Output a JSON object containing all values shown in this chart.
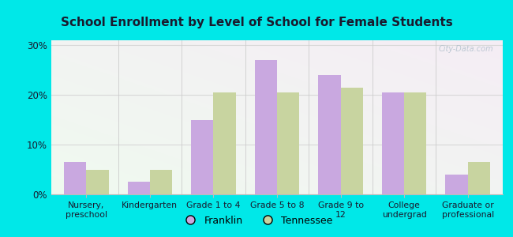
{
  "title": "School Enrollment by Level of School for Female Students",
  "categories": [
    "Nursery,\npreschool",
    "Kindergarten",
    "Grade 1 to 4",
    "Grade 5 to 8",
    "Grade 9 to\n12",
    "College\nundergrad",
    "Graduate or\nprofessional"
  ],
  "franklin_values": [
    6.5,
    2.5,
    15.0,
    27.0,
    24.0,
    20.5,
    4.0
  ],
  "tennessee_values": [
    5.0,
    5.0,
    20.5,
    20.5,
    21.5,
    20.5,
    6.5
  ],
  "franklin_color": "#c9a8e0",
  "tennessee_color": "#c8d4a0",
  "figure_bg": "#00e8e8",
  "plot_bg_tl": "#e8f5e0",
  "plot_bg_br": "#f8feff",
  "ylim": [
    0,
    31
  ],
  "yticks": [
    0,
    10,
    20,
    30
  ],
  "ytick_labels": [
    "0%",
    "10%",
    "20%",
    "30%"
  ],
  "bar_width": 0.35,
  "legend_labels": [
    "Franklin",
    "Tennessee"
  ],
  "watermark": "City-Data.com",
  "title_color": "#1a1a2e",
  "tick_label_color": "#1a1a2e",
  "grid_color": "#e8e8e8"
}
